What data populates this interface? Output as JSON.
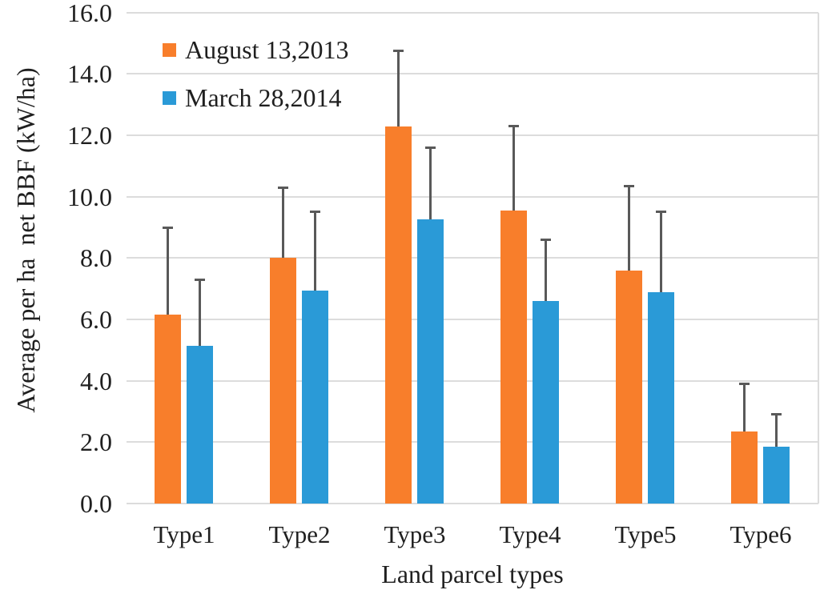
{
  "chart_data": {
    "type": "bar",
    "title": "",
    "xlabel": "Land parcel types",
    "ylabel": "Average per ha  net BBF (kW/ha)",
    "categories": [
      "Type1",
      "Type2",
      "Type3",
      "Type4",
      "Type5",
      "Type6"
    ],
    "series": [
      {
        "name": "August 13,2013",
        "color": "#F87E2B",
        "values": [
          6.15,
          8.0,
          12.3,
          9.55,
          7.6,
          2.35
        ],
        "errors_plus": [
          2.85,
          2.3,
          2.45,
          2.75,
          2.75,
          1.55
        ]
      },
      {
        "name": "March 28,2014",
        "color": "#2A9AD7",
        "values": [
          5.15,
          6.95,
          9.25,
          6.6,
          6.9,
          1.85
        ],
        "errors_plus": [
          2.15,
          2.55,
          2.35,
          2.0,
          2.6,
          1.05
        ]
      }
    ],
    "ylim": [
      0,
      16
    ],
    "ytick_step": 2,
    "ytick_decimals": 1,
    "grid": "horizontal",
    "legend_position": "top-left-inside",
    "colors": {
      "gridline": "#dcdcdc",
      "error_bar": "#595959",
      "text": "#1f1f1f",
      "background": "#ffffff"
    }
  }
}
